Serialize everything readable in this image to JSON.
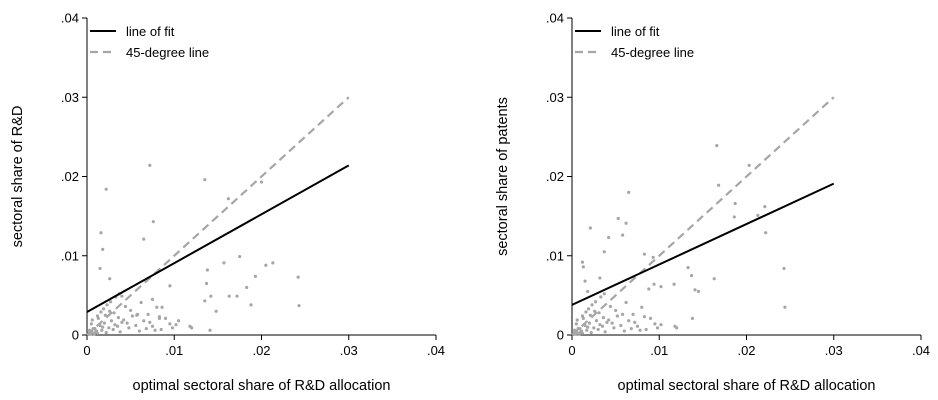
{
  "chart_data": [
    {
      "type": "scatter",
      "xlabel": "optimal sectoral share of R&D allocation",
      "ylabel": "sectoral share of R&D",
      "xlim": [
        0,
        0.04
      ],
      "ylim": [
        0,
        0.04
      ],
      "x_ticks": [
        ".01",
        ".02",
        ".03",
        ".04"
      ],
      "x_tick_values": [
        0.01,
        0.02,
        0.03,
        0.04
      ],
      "x_zero_label": "0",
      "y_ticks": [
        "0",
        ".01",
        ".02",
        ".03",
        ".04"
      ],
      "y_tick_values": [
        0,
        0.01,
        0.02,
        0.03,
        0.04
      ],
      "legend": {
        "placement": "top-left",
        "fit_label": "line of fit",
        "diag_label": "45-degree line"
      },
      "fit_line": {
        "x": [
          0,
          0.03
        ],
        "y": [
          0.0029,
          0.0214
        ]
      },
      "diagonal": {
        "x": [
          0,
          0.03
        ],
        "y": [
          0,
          0.03
        ]
      },
      "points": {
        "x": [
          0.0002,
          0.0004,
          0.0006,
          0.0008,
          0.001,
          0.0012,
          0.0003,
          0.0007,
          0.0011,
          0.0015,
          0.0018,
          0.002,
          0.0022,
          0.0025,
          0.0028,
          0.003,
          0.0032,
          0.0035,
          0.0038,
          0.004,
          0.0005,
          0.0009,
          0.0013,
          0.0017,
          0.0021,
          0.0026,
          0.0031,
          0.0036,
          0.0042,
          0.0046,
          0.0048,
          0.0052,
          0.0056,
          0.006,
          0.0065,
          0.0068,
          0.007,
          0.0075,
          0.008,
          0.0085,
          0.009,
          0.0095,
          0.0003,
          0.0006,
          0.0009,
          0.0012,
          0.0016,
          0.0019,
          0.0023,
          0.0027,
          0.0033,
          0.0037,
          0.0044,
          0.005,
          0.0058,
          0.0062,
          0.0072,
          0.0078,
          0.0083,
          0.0098,
          0.0102,
          0.0118,
          0.012,
          0.0022,
          0.0016,
          0.0015,
          0.0018,
          0.0072,
          0.0065,
          0.0076,
          0.0068,
          0.0135,
          0.0138,
          0.0157,
          0.0162,
          0.0175,
          0.02,
          0.0193,
          0.0137,
          0.0142,
          0.0148,
          0.0135,
          0.0141,
          0.0183,
          0.0163,
          0.0172,
          0.0242,
          0.0243,
          0.0213,
          0.0205,
          0.0188,
          0.0075,
          0.0086,
          0.004,
          0.0026,
          0.0083,
          0.0095,
          0.0105,
          0.0057
        ],
        "y": [
          0.0002,
          0.0001,
          0.0003,
          0.0001,
          0.0004,
          0.0002,
          0.0006,
          0.0008,
          0.0005,
          0.0012,
          0.001,
          0.0015,
          0.0003,
          0.0009,
          0.0018,
          0.0007,
          0.0013,
          0.0011,
          0.0004,
          0.0016,
          0.0014,
          0.0002,
          0.0021,
          0.0006,
          0.0025,
          0.003,
          0.0028,
          0.0022,
          0.0019,
          0.0015,
          0.0009,
          0.0024,
          0.0012,
          0.0005,
          0.0018,
          0.0008,
          0.0026,
          0.0011,
          0.0035,
          0.0007,
          0.0021,
          0.0014,
          0.0004,
          0.0019,
          0.0008,
          0.0024,
          0.0029,
          0.0033,
          0.0038,
          0.0042,
          0.0048,
          0.0052,
          0.0036,
          0.0031,
          0.0026,
          0.0041,
          0.0016,
          0.0006,
          0.0023,
          0.0009,
          0.0013,
          0.0011,
          0.0009,
          0.0184,
          0.0129,
          0.0084,
          0.0108,
          0.0214,
          0.0121,
          0.0143,
          0.0069,
          0.0196,
          0.0082,
          0.0091,
          0.0172,
          0.0099,
          0.0193,
          0.0074,
          0.0065,
          0.0049,
          0.003,
          0.0043,
          0.0006,
          0.006,
          0.0049,
          0.0049,
          0.0073,
          0.0037,
          0.0091,
          0.0088,
          0.0038,
          0.0045,
          0.0035,
          0.0049,
          0.0071,
          0.0021,
          0.0062,
          0.0018,
          0.0025
        ]
      }
    },
    {
      "type": "scatter",
      "xlabel": "optimal sectoral share of R&D allocation",
      "ylabel": "sectoral share of patents",
      "xlim": [
        0,
        0.04
      ],
      "ylim": [
        0,
        0.04
      ],
      "x_ticks": [
        ".01",
        ".02",
        ".03",
        ".04"
      ],
      "x_tick_values": [
        0.01,
        0.02,
        0.03,
        0.04
      ],
      "x_zero_label": "0",
      "y_ticks": [
        "0",
        ".01",
        ".02",
        ".03",
        ".04"
      ],
      "y_tick_values": [
        0,
        0.01,
        0.02,
        0.03,
        0.04
      ],
      "legend": {
        "placement": "top-left",
        "fit_label": "line of fit",
        "diag_label": "45-degree line"
      },
      "fit_line": {
        "x": [
          0,
          0.03
        ],
        "y": [
          0.0038,
          0.0191
        ]
      },
      "diagonal": {
        "x": [
          0,
          0.03
        ],
        "y": [
          0,
          0.03
        ]
      },
      "points": {
        "x": [
          0.0002,
          0.0004,
          0.0006,
          0.0008,
          0.001,
          0.0012,
          0.0003,
          0.0007,
          0.0011,
          0.0015,
          0.0018,
          0.002,
          0.0022,
          0.0025,
          0.0028,
          0.003,
          0.0032,
          0.0035,
          0.0038,
          0.004,
          0.0005,
          0.0009,
          0.0013,
          0.0017,
          0.0021,
          0.0026,
          0.0031,
          0.0036,
          0.0042,
          0.0046,
          0.0048,
          0.0052,
          0.0056,
          0.006,
          0.0065,
          0.0068,
          0.007,
          0.0075,
          0.008,
          0.0085,
          0.009,
          0.0095,
          0.0003,
          0.0006,
          0.0009,
          0.0012,
          0.0016,
          0.0019,
          0.0023,
          0.0027,
          0.0033,
          0.0037,
          0.0044,
          0.005,
          0.0058,
          0.0062,
          0.0072,
          0.0078,
          0.0083,
          0.0098,
          0.0102,
          0.0118,
          0.012,
          0.0012,
          0.0013,
          0.0021,
          0.0015,
          0.0018,
          0.0032,
          0.0037,
          0.0042,
          0.0053,
          0.0058,
          0.0062,
          0.0065,
          0.0083,
          0.0088,
          0.0093,
          0.0094,
          0.0102,
          0.0117,
          0.0133,
          0.0137,
          0.0141,
          0.0138,
          0.0145,
          0.0163,
          0.0166,
          0.0168,
          0.0187,
          0.0203,
          0.0213,
          0.0221,
          0.0243,
          0.0244,
          0.0222,
          0.0186
        ],
        "y": [
          0.0002,
          0.0001,
          0.0003,
          0.0001,
          0.0004,
          0.0002,
          0.0006,
          0.0008,
          0.0005,
          0.0012,
          0.001,
          0.0015,
          0.0003,
          0.0009,
          0.0018,
          0.0007,
          0.0013,
          0.0011,
          0.0004,
          0.0016,
          0.0014,
          0.0002,
          0.0021,
          0.0006,
          0.0025,
          0.003,
          0.0028,
          0.0022,
          0.0019,
          0.0015,
          0.0009,
          0.0024,
          0.0012,
          0.0005,
          0.0018,
          0.0008,
          0.0026,
          0.0011,
          0.0035,
          0.0007,
          0.0021,
          0.0014,
          0.0004,
          0.0019,
          0.0008,
          0.0024,
          0.0029,
          0.0033,
          0.0038,
          0.0042,
          0.0048,
          0.0052,
          0.0036,
          0.0031,
          0.0026,
          0.0041,
          0.0016,
          0.0006,
          0.0023,
          0.0009,
          0.0013,
          0.0011,
          0.0009,
          0.0092,
          0.0086,
          0.0135,
          0.0068,
          0.0055,
          0.0072,
          0.0105,
          0.0123,
          0.0147,
          0.0126,
          0.0141,
          0.018,
          0.0102,
          0.0058,
          0.0098,
          0.0064,
          0.0061,
          0.0064,
          0.0085,
          0.0075,
          0.0057,
          0.0021,
          0.0055,
          0.0071,
          0.0239,
          0.0189,
          0.0166,
          0.0214,
          0.0151,
          0.0162,
          0.0084,
          0.0035,
          0.0129,
          0.0149
        ]
      }
    }
  ]
}
